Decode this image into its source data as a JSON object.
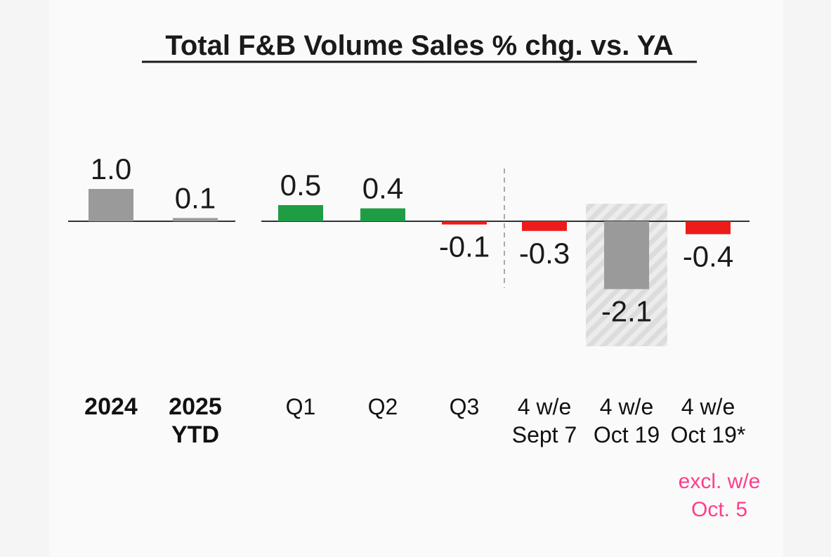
{
  "chart_data": {
    "type": "bar",
    "title": "Total F&B Volume Sales % chg. vs. YA",
    "categories": [
      [
        "2024"
      ],
      [
        "2025",
        "YTD"
      ],
      [
        "Q1"
      ],
      [
        "Q2"
      ],
      [
        "Q3"
      ],
      [
        "4 w/e",
        "Sept 7"
      ],
      [
        "4 w/e",
        "Oct 19"
      ],
      [
        "4 w/e",
        "Oct 19*"
      ]
    ],
    "values": [
      1.0,
      0.1,
      0.5,
      0.4,
      -0.1,
      -0.3,
      -2.1,
      -0.4
    ],
    "value_labels": [
      "1.0",
      "0.1",
      "0.5",
      "0.4",
      "-0.1",
      "-0.3",
      "-2.1",
      "-0.4"
    ],
    "bar_colors": [
      "#9a9a9a",
      "#9a9a9a",
      "#1f9d45",
      "#1f9d45",
      "#ee1b1b",
      "#ee1b1b",
      "#9a9a9a",
      "#ee1b1b"
    ],
    "bold_categories": [
      0,
      1
    ],
    "highlighted_category": 6,
    "divider_after_category": 4,
    "footnote": [
      "excl. w/e",
      "Oct. 5"
    ],
    "footnote_color": "#ff3d8b",
    "ylim": [
      -2.1,
      1.0
    ],
    "xlabel": "",
    "ylabel": ""
  }
}
